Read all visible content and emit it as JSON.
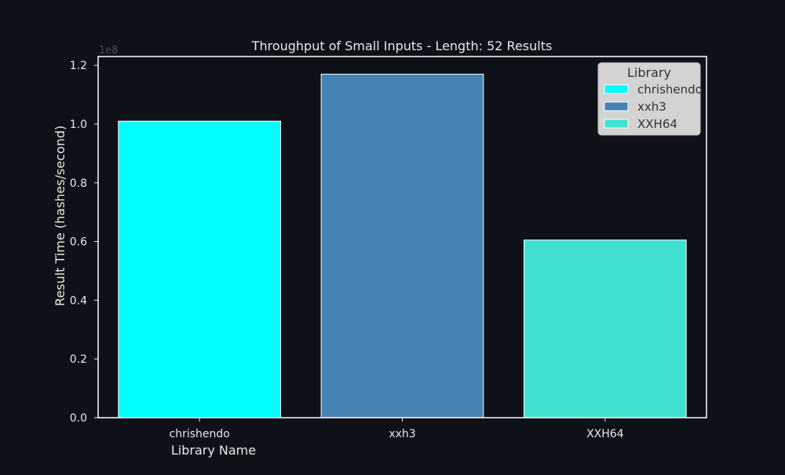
{
  "chart_data": {
    "type": "bar",
    "title": "Throughput of Small Inputs - Length: 52 Results",
    "xlabel": "Library Name",
    "ylabel": "Result Time (hashes/second)",
    "y_multiplier_label": "1e8",
    "categories": [
      "chrishendo",
      "xxh3",
      "XXH64"
    ],
    "values": [
      101000000,
      117000000,
      60500000
    ],
    "ylim": [
      0,
      123000000
    ],
    "y_ticks": [
      {
        "value": 0,
        "label": "0.0"
      },
      {
        "value": 20000000,
        "label": "0.2"
      },
      {
        "value": 40000000,
        "label": "0.4"
      },
      {
        "value": 60000000,
        "label": "0.6"
      },
      {
        "value": 80000000,
        "label": "0.8"
      },
      {
        "value": 100000000,
        "label": "1.0"
      },
      {
        "value": 120000000,
        "label": "1.2"
      }
    ],
    "bar_colors": [
      "#00ffff",
      "#4682b4",
      "#40e0d0"
    ],
    "grid": false,
    "legend": {
      "title": "Library",
      "placement": "top-right",
      "entries": [
        "chrishendo",
        "xxh3",
        "XXH64"
      ]
    },
    "background": "#0e1117",
    "text_color": "#e8e8e8",
    "axes_frame_color": "#ffffff"
  }
}
